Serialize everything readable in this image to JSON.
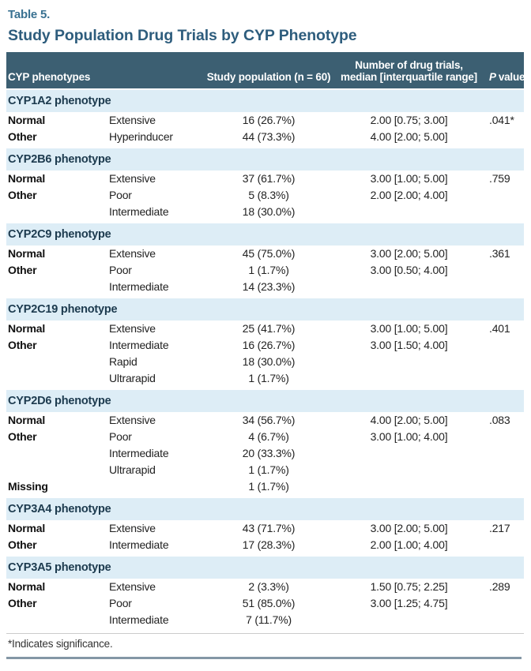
{
  "page": {
    "table_label": "Table 5.",
    "title": "Study Population Drug Trials by CYP Phenotype",
    "footnote": "*Indicates significance."
  },
  "colors": {
    "header_bg": "#3c5f72",
    "header_text": "#ffffff",
    "section_band_bg": "#ddedf6",
    "table_label_color": "#397191",
    "title_color": "#2e5d7d",
    "bottom_rule_color": "#8497a5"
  },
  "header": {
    "col1": "CYP phenotypes",
    "col3": "Study population (n = 60)",
    "col4_line1": "Number of drug trials,",
    "col4_line2": "median [interquartile range]",
    "p_italic": "P",
    "p_rest": "value"
  },
  "sections": [
    {
      "label": "CYP1A2 phenotype",
      "rows": [
        {
          "group": "Normal",
          "type": "Extensive",
          "pop": "16 (26.7%)",
          "trials": "2.00 [0.75; 3.00]",
          "p": ".041*"
        },
        {
          "group": "Other",
          "type": "Hyperinducer",
          "pop": "44 (73.3%)",
          "trials": "4.00 [2.00; 5.00]",
          "p": ""
        }
      ]
    },
    {
      "label": "CYP2B6 phenotype",
      "rows": [
        {
          "group": "Normal",
          "type": "Extensive",
          "pop": "37 (61.7%)",
          "trials": "3.00 [1.00; 5.00]",
          "p": ".759"
        },
        {
          "group": "Other",
          "type": "Poor",
          "pop": "5 (8.3%)",
          "trials": "2.00 [2.00; 4.00]",
          "p": ""
        },
        {
          "group": "",
          "type": "Intermediate",
          "pop": "18 (30.0%)",
          "trials": "",
          "p": ""
        }
      ]
    },
    {
      "label": "CYP2C9 phenotype",
      "rows": [
        {
          "group": "Normal",
          "type": "Extensive",
          "pop": "45 (75.0%)",
          "trials": "3.00 [2.00; 5.00]",
          "p": ".361"
        },
        {
          "group": "Other",
          "type": "Poor",
          "pop": "1 (1.7%)",
          "trials": "3.00 [0.50; 4.00]",
          "p": ""
        },
        {
          "group": "",
          "type": "Intermediate",
          "pop": "14 (23.3%)",
          "trials": "",
          "p": ""
        }
      ]
    },
    {
      "label": "CYP2C19 phenotype",
      "rows": [
        {
          "group": "Normal",
          "type": "Extensive",
          "pop": "25 (41.7%)",
          "trials": "3.00 [1.00; 5.00]",
          "p": ".401"
        },
        {
          "group": "Other",
          "type": "Intermediate",
          "pop": "16 (26.7%)",
          "trials": "3.00 [1.50; 4.00]",
          "p": ""
        },
        {
          "group": "",
          "type": "Rapid",
          "pop": "18 (30.0%)",
          "trials": "",
          "p": ""
        },
        {
          "group": "",
          "type": "Ultrarapid",
          "pop": "1 (1.7%)",
          "trials": "",
          "p": ""
        }
      ]
    },
    {
      "label": "CYP2D6 phenotype",
      "rows": [
        {
          "group": "Normal",
          "type": "Extensive",
          "pop": "34 (56.7%)",
          "trials": "4.00 [2.00; 5.00]",
          "p": ".083"
        },
        {
          "group": "Other",
          "type": "Poor",
          "pop": "4 (6.7%)",
          "trials": "3.00 [1.00; 4.00]",
          "p": ""
        },
        {
          "group": "",
          "type": "Intermediate",
          "pop": "20 (33.3%)",
          "trials": "",
          "p": ""
        },
        {
          "group": "",
          "type": "Ultrarapid",
          "pop": "1 (1.7%)",
          "trials": "",
          "p": ""
        },
        {
          "group": "Missing",
          "type": "",
          "pop": "1 (1.7%)",
          "trials": "",
          "p": ""
        }
      ]
    },
    {
      "label": "CYP3A4 phenotype",
      "rows": [
        {
          "group": "Normal",
          "type": "Extensive",
          "pop": "43 (71.7%)",
          "trials": "3.00 [2.00; 5.00]",
          "p": ".217"
        },
        {
          "group": "Other",
          "type": "Intermediate",
          "pop": "17 (28.3%)",
          "trials": "2.00 [1.00; 4.00]",
          "p": ""
        }
      ]
    },
    {
      "label": "CYP3A5 phenotype",
      "rows": [
        {
          "group": "Normal",
          "type": "Extensive",
          "pop": "2 (3.3%)",
          "trials": "1.50 [0.75; 2.25]",
          "p": ".289"
        },
        {
          "group": "Other",
          "type": "Poor",
          "pop": "51 (85.0%)",
          "trials": "3.00 [1.25; 4.75]",
          "p": ""
        },
        {
          "group": "",
          "type": "Intermediate",
          "pop": "7 (11.7%)",
          "trials": "",
          "p": ""
        }
      ]
    }
  ]
}
